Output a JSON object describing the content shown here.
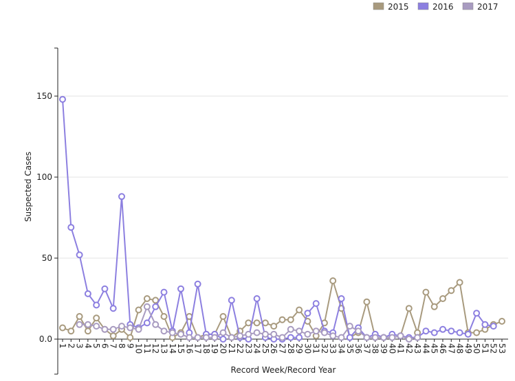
{
  "chart_data": {
    "type": "line",
    "title": "",
    "xlabel": "Record Week/Record Year",
    "ylabel": "Suspected Cases",
    "ylim": [
      -20,
      180
    ],
    "yticks": [
      "0.0",
      "50",
      "100",
      "150"
    ],
    "ytick_values": [
      0,
      50,
      100,
      150
    ],
    "grid": "horizontal",
    "legend_position": "top-right",
    "x": [
      "1",
      "2",
      "3",
      "4",
      "5",
      "6",
      "7",
      "8",
      "9",
      "10",
      "11",
      "12",
      "13",
      "14",
      "15",
      "16",
      "17",
      "18",
      "19",
      "20",
      "21",
      "22",
      "23",
      "24",
      "25",
      "26",
      "27",
      "28",
      "29",
      "30",
      "31",
      "32",
      "33",
      "34",
      "35",
      "36",
      "37",
      "38",
      "39",
      "40",
      "41",
      "42",
      "43",
      "44",
      "45",
      "46",
      "47",
      "48",
      "49",
      "50",
      "51",
      "52",
      "53"
    ],
    "series": [
      {
        "name": "2015",
        "color": "#a89a7e",
        "values": [
          7,
          5,
          14,
          5,
          13,
          6,
          2,
          6,
          1,
          18,
          25,
          24,
          14,
          1,
          4,
          14,
          1,
          3,
          3,
          14,
          1,
          5,
          10,
          10,
          10,
          8,
          12,
          12,
          18,
          11,
          2,
          10,
          36,
          19,
          1,
          4,
          23,
          1,
          1,
          1,
          2,
          19,
          4,
          29,
          20,
          25,
          30,
          35,
          4,
          4,
          6,
          9,
          11
        ]
      },
      {
        "name": "2016",
        "color": "#8c7fe0",
        "values": [
          148,
          69,
          52,
          28,
          21,
          31,
          19,
          88,
          9,
          7,
          10,
          20,
          29,
          5,
          31,
          4,
          34,
          3,
          3,
          0,
          24,
          1,
          0,
          25,
          1,
          0,
          0,
          1,
          1,
          16,
          22,
          5,
          4,
          25,
          1,
          7,
          1,
          3,
          1,
          3,
          2,
          1,
          1,
          5,
          4,
          6,
          5,
          4,
          3,
          16,
          9,
          8,
          null
        ]
      },
      {
        "name": "2017",
        "color": "#a89bc0",
        "values": [
          null,
          null,
          9,
          9,
          8,
          6,
          6,
          8,
          7,
          6,
          20,
          9,
          5,
          4,
          3,
          1,
          1,
          1,
          1,
          4,
          1,
          2,
          3,
          4,
          3,
          3,
          1,
          6,
          5,
          3,
          5,
          4,
          2,
          1,
          8,
          5,
          1,
          1,
          1,
          1,
          2,
          0,
          1,
          null,
          null,
          null,
          null,
          null,
          null,
          null,
          null,
          null,
          null
        ]
      }
    ]
  }
}
